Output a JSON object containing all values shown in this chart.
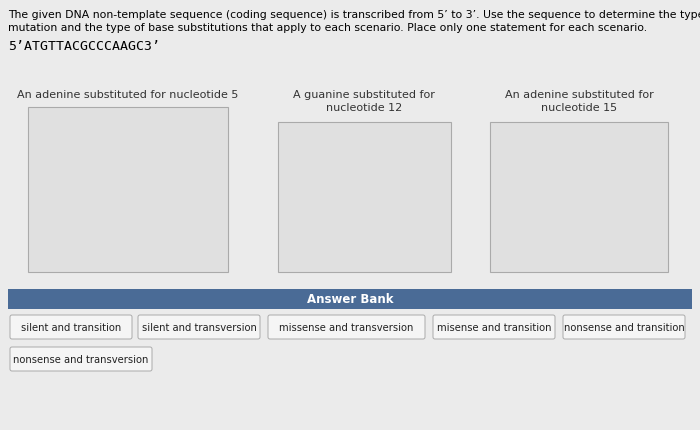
{
  "bg_color": "#ebebeb",
  "header_text_line1": "The given DNA non-template sequence (coding sequence) is transcribed from 5’ to 3’. Use the sequence to determine the type of",
  "header_text_line2": "mutation and the type of base substitutions that apply to each scenario. Place only one statement for each scenario.",
  "sequence_text": "5’ATGTTACGCCCAAGC3’",
  "box_titles": [
    "An adenine substituted for nucleotide 5",
    "A guanine substituted for\nnucleotide 12",
    "An adenine substituted for\nnucleotide 15"
  ],
  "answer_bank_bg": "#4a6b96",
  "answer_bank_text": "Answer Bank",
  "answer_bank_text_color": "#ffffff",
  "answer_items_row1": [
    "silent and transition",
    "silent and transversion",
    "missense and transversion",
    "misense and transition",
    "nonsense and transition"
  ],
  "answer_items_row2": [
    "nonsense and transversion"
  ],
  "box_bg": "#e0e0e0",
  "box_border": "#aaaaaa",
  "answer_item_bg": "#f5f5f5",
  "answer_item_border": "#aaaaaa",
  "title_fontsize": 8.0,
  "header_fontsize": 7.8,
  "seq_fontsize": 9.5,
  "answer_fontsize": 7.2
}
